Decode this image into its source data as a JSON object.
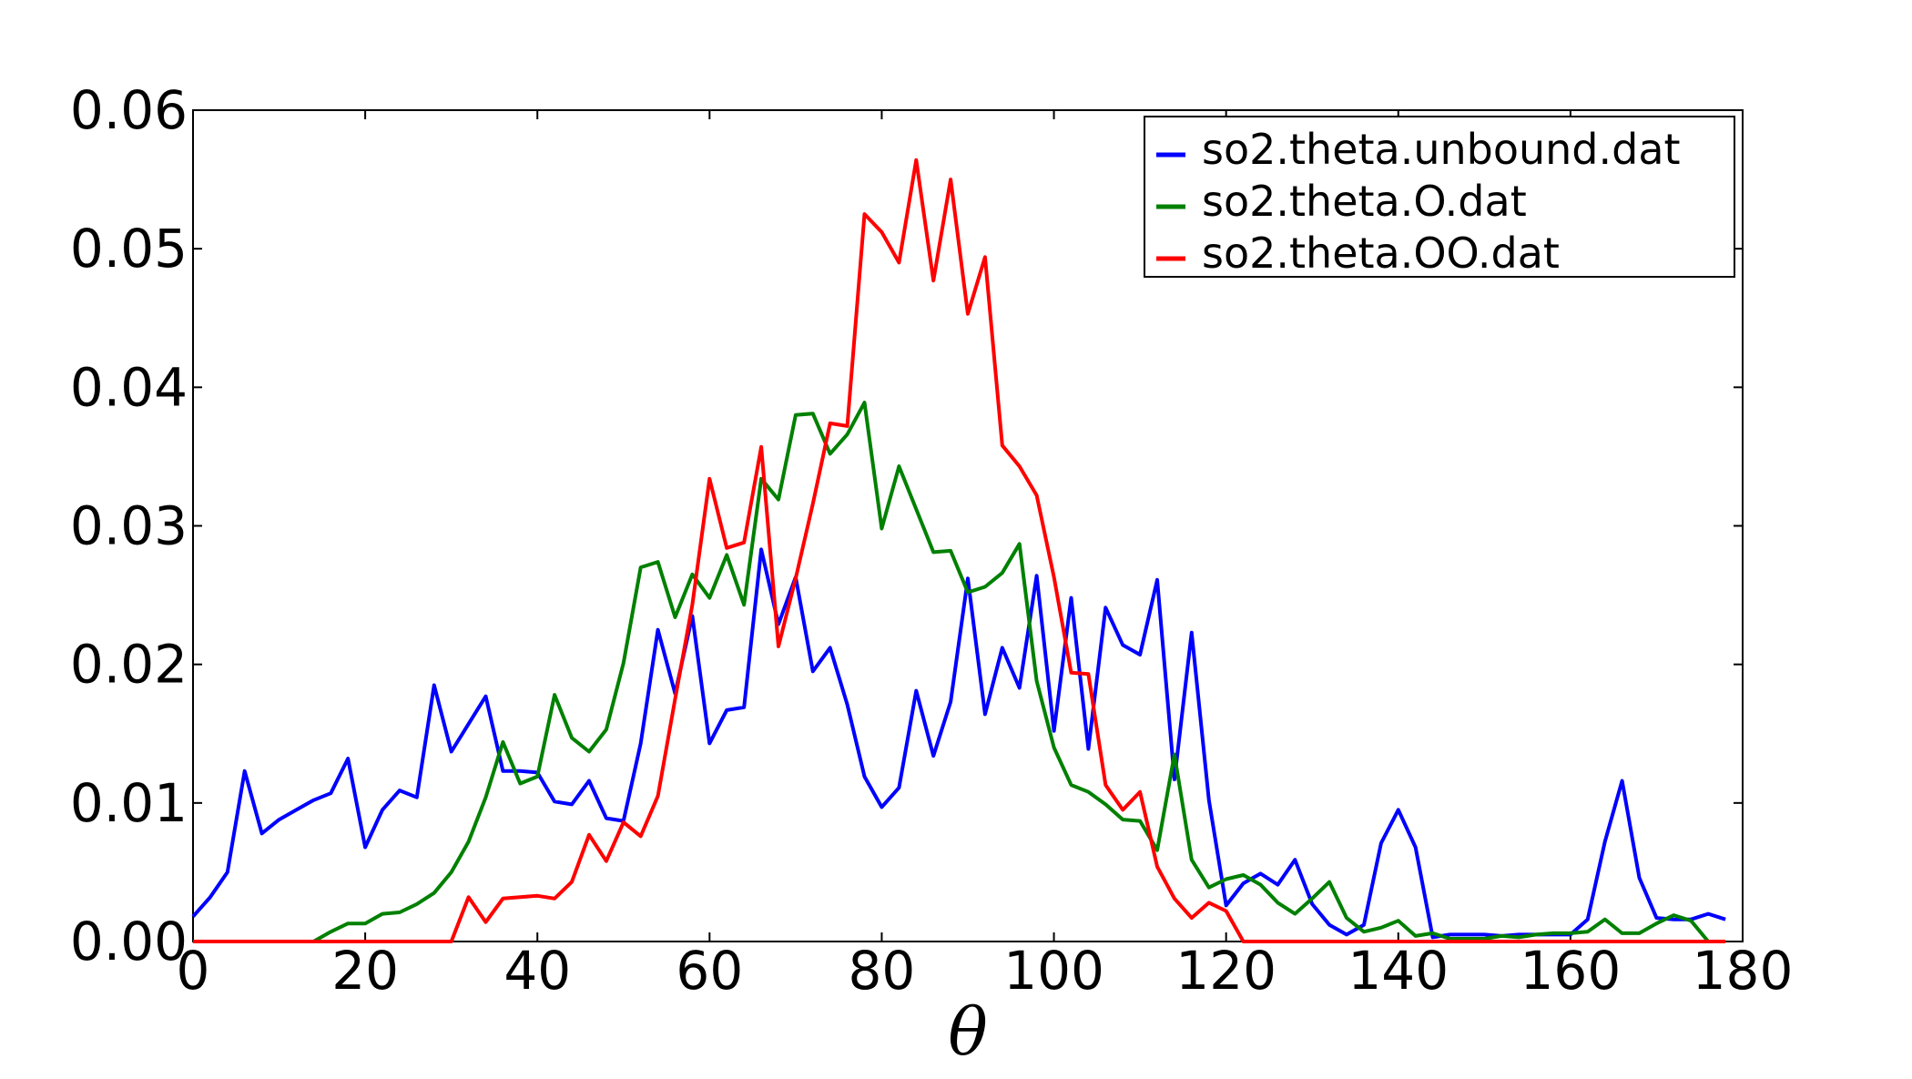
{
  "chart_data": {
    "type": "line",
    "title": "",
    "xlabel": "θ",
    "ylabel": "",
    "xlim": [
      0,
      180
    ],
    "ylim": [
      0,
      0.06
    ],
    "xticks": [
      "0",
      "20",
      "40",
      "60",
      "80",
      "100",
      "120",
      "140",
      "160",
      "180"
    ],
    "yticks": [
      "0.00",
      "0.01",
      "0.02",
      "0.03",
      "0.04",
      "0.05",
      "0.06"
    ],
    "grid": false,
    "legend": {
      "position": "top-right",
      "frame": true
    },
    "x": [
      0,
      2,
      4,
      6,
      8,
      10,
      12,
      14,
      16,
      18,
      20,
      22,
      24,
      26,
      28,
      30,
      32,
      34,
      36,
      38,
      40,
      42,
      44,
      46,
      48,
      50,
      52,
      54,
      56,
      58,
      60,
      62,
      64,
      66,
      68,
      70,
      72,
      74,
      76,
      78,
      80,
      82,
      84,
      86,
      88,
      90,
      92,
      94,
      96,
      98,
      100,
      102,
      104,
      106,
      108,
      110,
      112,
      114,
      116,
      118,
      120,
      122,
      124,
      126,
      128,
      130,
      132,
      134,
      136,
      138,
      140,
      142,
      144,
      146,
      148,
      150,
      152,
      154,
      156,
      158,
      160,
      162,
      164,
      166,
      168,
      170,
      172,
      174,
      176,
      178
    ],
    "series": [
      {
        "name": "so2.theta.unbound.dat",
        "color": "#0000ff",
        "values": [
          0.0018,
          0.0032,
          0.005,
          0.0123,
          0.0078,
          0.0088,
          0.0095,
          0.0102,
          0.0107,
          0.0132,
          0.0068,
          0.0095,
          0.0109,
          0.0104,
          0.0185,
          0.0137,
          0.0157,
          0.0177,
          0.0123,
          0.0123,
          0.0122,
          0.0101,
          0.0099,
          0.0116,
          0.0089,
          0.0087,
          0.0143,
          0.0225,
          0.0179,
          0.0235,
          0.0143,
          0.0167,
          0.0169,
          0.0283,
          0.0229,
          0.0263,
          0.0195,
          0.0212,
          0.0171,
          0.0119,
          0.0097,
          0.0111,
          0.0181,
          0.0134,
          0.0173,
          0.0262,
          0.0164,
          0.0212,
          0.0183,
          0.0264,
          0.0152,
          0.0248,
          0.0139,
          0.0241,
          0.0214,
          0.0207,
          0.0261,
          0.0117,
          0.0223,
          0.0102,
          0.0026,
          0.0042,
          0.0049,
          0.0041,
          0.0059,
          0.0027,
          0.0012,
          0.0005,
          0.0012,
          0.0071,
          0.0095,
          0.0068,
          0.0003,
          0.0005,
          0.0005,
          0.0005,
          0.0004,
          0.0005,
          0.0005,
          0.0005,
          0.0005,
          0.0016,
          0.0072,
          0.0116,
          0.0046,
          0.0017,
          0.0016,
          0.0016,
          0.002,
          0.0016
        ]
      },
      {
        "name": "so2.theta.O.dat",
        "color": "#008000",
        "values": [
          0,
          0,
          0,
          0,
          0,
          0,
          0,
          0,
          0.0007,
          0.0013,
          0.0013,
          0.002,
          0.0021,
          0.0027,
          0.0035,
          0.005,
          0.0072,
          0.0104,
          0.0144,
          0.0114,
          0.0119,
          0.0178,
          0.0147,
          0.0137,
          0.0153,
          0.0201,
          0.027,
          0.0274,
          0.0234,
          0.0265,
          0.0248,
          0.0279,
          0.0243,
          0.0334,
          0.0319,
          0.038,
          0.0381,
          0.0352,
          0.0366,
          0.0389,
          0.0298,
          0.0343,
          0.0312,
          0.0281,
          0.0282,
          0.0252,
          0.0256,
          0.0266,
          0.0287,
          0.0188,
          0.014,
          0.0113,
          0.0108,
          0.0099,
          0.0088,
          0.0087,
          0.0066,
          0.0135,
          0.0059,
          0.0039,
          0.0045,
          0.0048,
          0.0041,
          0.0028,
          0.002,
          0.0031,
          0.0043,
          0.0017,
          0.0007,
          0.001,
          0.0015,
          0.0004,
          0.0006,
          0.0002,
          0.0002,
          0.0002,
          0.0004,
          0.0003,
          0.0005,
          0.0006,
          0.0006,
          0.0007,
          0.0016,
          0.0006,
          0.0006,
          0.0013,
          0.0019,
          0.0015,
          0,
          0
        ]
      },
      {
        "name": "so2.theta.OO.dat",
        "color": "#ff0000",
        "values": [
          0,
          0,
          0,
          0,
          0,
          0,
          0,
          0,
          0,
          0,
          0,
          0,
          0,
          0,
          0,
          0,
          0.0032,
          0.0014,
          0.0031,
          0.0032,
          0.0033,
          0.0031,
          0.0043,
          0.0077,
          0.0058,
          0.0086,
          0.0076,
          0.0105,
          0.0175,
          0.0243,
          0.0334,
          0.0284,
          0.0288,
          0.0357,
          0.0213,
          0.0262,
          0.0316,
          0.0374,
          0.0372,
          0.0525,
          0.0512,
          0.049,
          0.0564,
          0.0477,
          0.055,
          0.0453,
          0.0494,
          0.0358,
          0.0343,
          0.0322,
          0.0263,
          0.0194,
          0.0193,
          0.0113,
          0.0095,
          0.0108,
          0.0054,
          0.0031,
          0.0017,
          0.0028,
          0.0022,
          0,
          0,
          0,
          0,
          0,
          0,
          0,
          0,
          0,
          0,
          0,
          0,
          0,
          0,
          0,
          0,
          0,
          0,
          0,
          0,
          0,
          0,
          0,
          0,
          0,
          0,
          0,
          0,
          0
        ]
      }
    ]
  }
}
